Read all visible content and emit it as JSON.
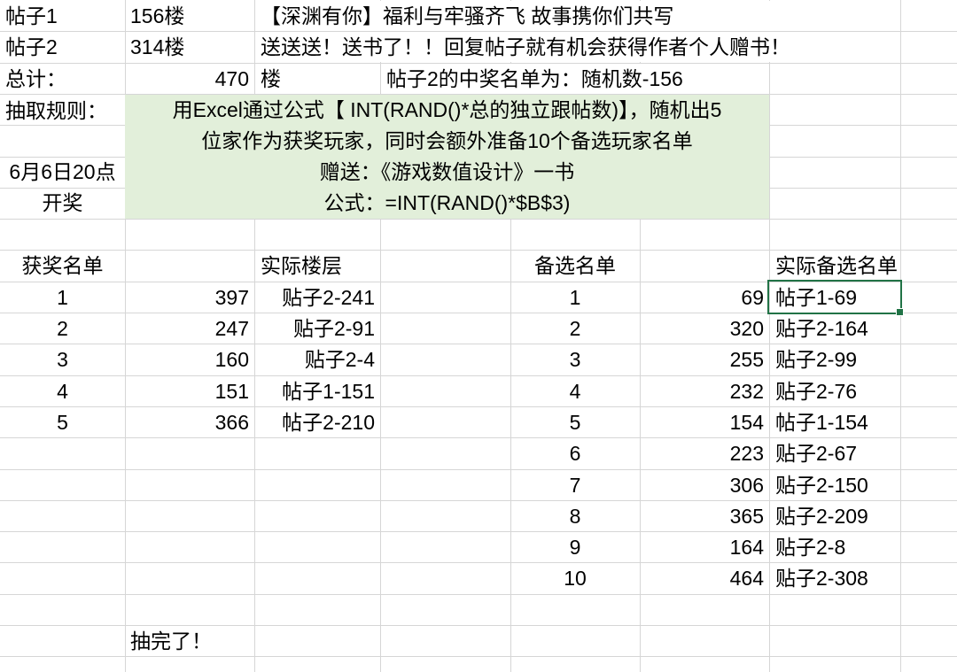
{
  "colors": {
    "highlight_fill": "#e2efda",
    "selection_border": "#217346",
    "gridline": "#d6d6d6"
  },
  "summary": {
    "post1_label": "帖子1",
    "post1_floors": "156楼",
    "post1_title": "【深渊有你】福利与牢骚齐飞 故事携你们共写",
    "post2_label": "帖子2",
    "post2_floors": "314楼",
    "post2_title": "送送送！送书了！！回复帖子就有机会获得作者个人赠书！",
    "total_label": "总计：",
    "total_value": "470",
    "total_unit": "楼",
    "post2_winner_note": "帖子2的中奖名单为：随机数-156"
  },
  "rules": {
    "label": "抽取规则：",
    "line1": "用Excel通过公式【 INT(RAND()*总的独立跟帖数)】，随机出5",
    "line2": "位家作为获奖玩家，同时会额外准备10个备选玩家名单",
    "line3": "赠送：《游戏数值设计》一书",
    "line4": "公式：=INT(RAND()*$B$3)",
    "draw_time_line1": "6月6日20点",
    "draw_time_line2": "开奖"
  },
  "winners": {
    "header_rank": "获奖名单",
    "header_floor": "实际楼层",
    "rows": [
      {
        "rank": "1",
        "random": "397",
        "floor": "贴子2-241"
      },
      {
        "rank": "2",
        "random": "247",
        "floor": "贴子2-91"
      },
      {
        "rank": "3",
        "random": "160",
        "floor": "贴子2-4"
      },
      {
        "rank": "4",
        "random": "151",
        "floor": "帖子1-151"
      },
      {
        "rank": "5",
        "random": "366",
        "floor": "帖子2-210"
      }
    ]
  },
  "backups": {
    "header_rank": "备选名单",
    "header_floor": "实际备选名单",
    "rows": [
      {
        "rank": "1",
        "random": "69",
        "floor": "帖子1-69"
      },
      {
        "rank": "2",
        "random": "320",
        "floor": "贴子2-164"
      },
      {
        "rank": "3",
        "random": "255",
        "floor": "贴子2-99"
      },
      {
        "rank": "4",
        "random": "232",
        "floor": "贴子2-76"
      },
      {
        "rank": "5",
        "random": "154",
        "floor": "帖子1-154"
      },
      {
        "rank": "6",
        "random": "223",
        "floor": "贴子2-67"
      },
      {
        "rank": "7",
        "random": "306",
        "floor": "贴子2-150"
      },
      {
        "rank": "8",
        "random": "365",
        "floor": "贴子2-209"
      },
      {
        "rank": "9",
        "random": "164",
        "floor": "贴子2-8"
      },
      {
        "rank": "10",
        "random": "464",
        "floor": "贴子2-308"
      }
    ]
  },
  "footer": {
    "done_text": "抽完了！"
  }
}
